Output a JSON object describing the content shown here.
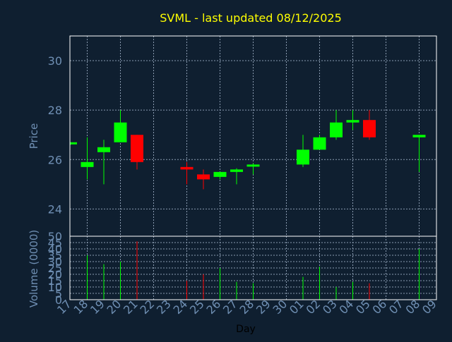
{
  "title": "SVML - last updated 08/12/2025",
  "colors": {
    "background": "#0f1f30",
    "title": "#ffff00",
    "axis_text": "#6f8fb3",
    "frame": "#ffffff",
    "grid": "#8a9bb0",
    "up": "#00ff00",
    "down": "#ff0000",
    "xlabel": "#000000"
  },
  "chart_data": [
    {
      "type": "candlestick",
      "panel": "price",
      "ylabel": "Price",
      "ylim": [
        22.9,
        31.0
      ],
      "yticks": [
        24,
        26,
        28,
        30
      ],
      "grid": true,
      "x": [
        "17",
        "18",
        "19",
        "20",
        "21",
        "22",
        "23",
        "24",
        "25",
        "26",
        "27",
        "28",
        "29",
        "30",
        "01",
        "02",
        "03",
        "04",
        "05",
        "06",
        "07",
        "08",
        "09"
      ],
      "candles": [
        {
          "x": "17",
          "open": 26.65,
          "high": 26.7,
          "low": 26.6,
          "close": 26.7
        },
        {
          "x": "18",
          "open": 25.7,
          "high": 26.9,
          "low": 25.2,
          "close": 25.9
        },
        {
          "x": "19",
          "open": 26.3,
          "high": 26.8,
          "low": 25.0,
          "close": 26.5
        },
        {
          "x": "20",
          "open": 26.7,
          "high": 28.0,
          "low": 26.7,
          "close": 27.5
        },
        {
          "x": "21",
          "open": 27.0,
          "high": 27.0,
          "low": 25.6,
          "close": 25.9
        },
        {
          "x": "24",
          "open": 25.7,
          "high": 25.9,
          "low": 25.0,
          "close": 25.6
        },
        {
          "x": "25",
          "open": 25.4,
          "high": 25.6,
          "low": 24.8,
          "close": 25.2
        },
        {
          "x": "26",
          "open": 25.3,
          "high": 25.5,
          "low": 25.2,
          "close": 25.5
        },
        {
          "x": "27",
          "open": 25.5,
          "high": 25.65,
          "low": 25.0,
          "close": 25.6
        },
        {
          "x": "28",
          "open": 25.75,
          "high": 25.85,
          "low": 25.4,
          "close": 25.8
        },
        {
          "x": "01",
          "open": 25.8,
          "high": 27.0,
          "low": 25.7,
          "close": 26.4
        },
        {
          "x": "02",
          "open": 26.4,
          "high": 27.0,
          "low": 26.4,
          "close": 26.9
        },
        {
          "x": "03",
          "open": 26.9,
          "high": 28.0,
          "low": 26.8,
          "close": 27.5
        },
        {
          "x": "04",
          "open": 27.5,
          "high": 28.0,
          "low": 27.2,
          "close": 27.6
        },
        {
          "x": "05",
          "open": 27.6,
          "high": 28.0,
          "low": 26.8,
          "close": 26.9
        },
        {
          "x": "08",
          "open": 26.9,
          "high": 27.0,
          "low": 25.5,
          "close": 27.0
        }
      ]
    },
    {
      "type": "bar",
      "panel": "volume",
      "ylabel": "Volume (0000)",
      "xlabel": "Day",
      "ylim": [
        0,
        50
      ],
      "yticks": [
        0,
        5,
        10,
        15,
        20,
        25,
        30,
        35,
        40,
        45,
        50
      ],
      "grid": true,
      "x": [
        "17",
        "18",
        "19",
        "20",
        "21",
        "22",
        "23",
        "24",
        "25",
        "26",
        "27",
        "28",
        "29",
        "30",
        "01",
        "02",
        "03",
        "04",
        "05",
        "06",
        "07",
        "08",
        "09"
      ],
      "bars": [
        {
          "x": "18",
          "value": 35,
          "direction": "up"
        },
        {
          "x": "19",
          "value": 28,
          "direction": "up"
        },
        {
          "x": "20",
          "value": 30,
          "direction": "up"
        },
        {
          "x": "21",
          "value": 46,
          "direction": "down"
        },
        {
          "x": "24",
          "value": 15,
          "direction": "down"
        },
        {
          "x": "25",
          "value": 20,
          "direction": "down"
        },
        {
          "x": "26",
          "value": 25,
          "direction": "up"
        },
        {
          "x": "27",
          "value": 14,
          "direction": "up"
        },
        {
          "x": "28",
          "value": 13,
          "direction": "up"
        },
        {
          "x": "01",
          "value": 18,
          "direction": "up"
        },
        {
          "x": "02",
          "value": 26,
          "direction": "up"
        },
        {
          "x": "03",
          "value": 10,
          "direction": "up"
        },
        {
          "x": "04",
          "value": 14,
          "direction": "up"
        },
        {
          "x": "05",
          "value": 13,
          "direction": "down"
        },
        {
          "x": "08",
          "value": 40,
          "direction": "up"
        }
      ]
    }
  ]
}
